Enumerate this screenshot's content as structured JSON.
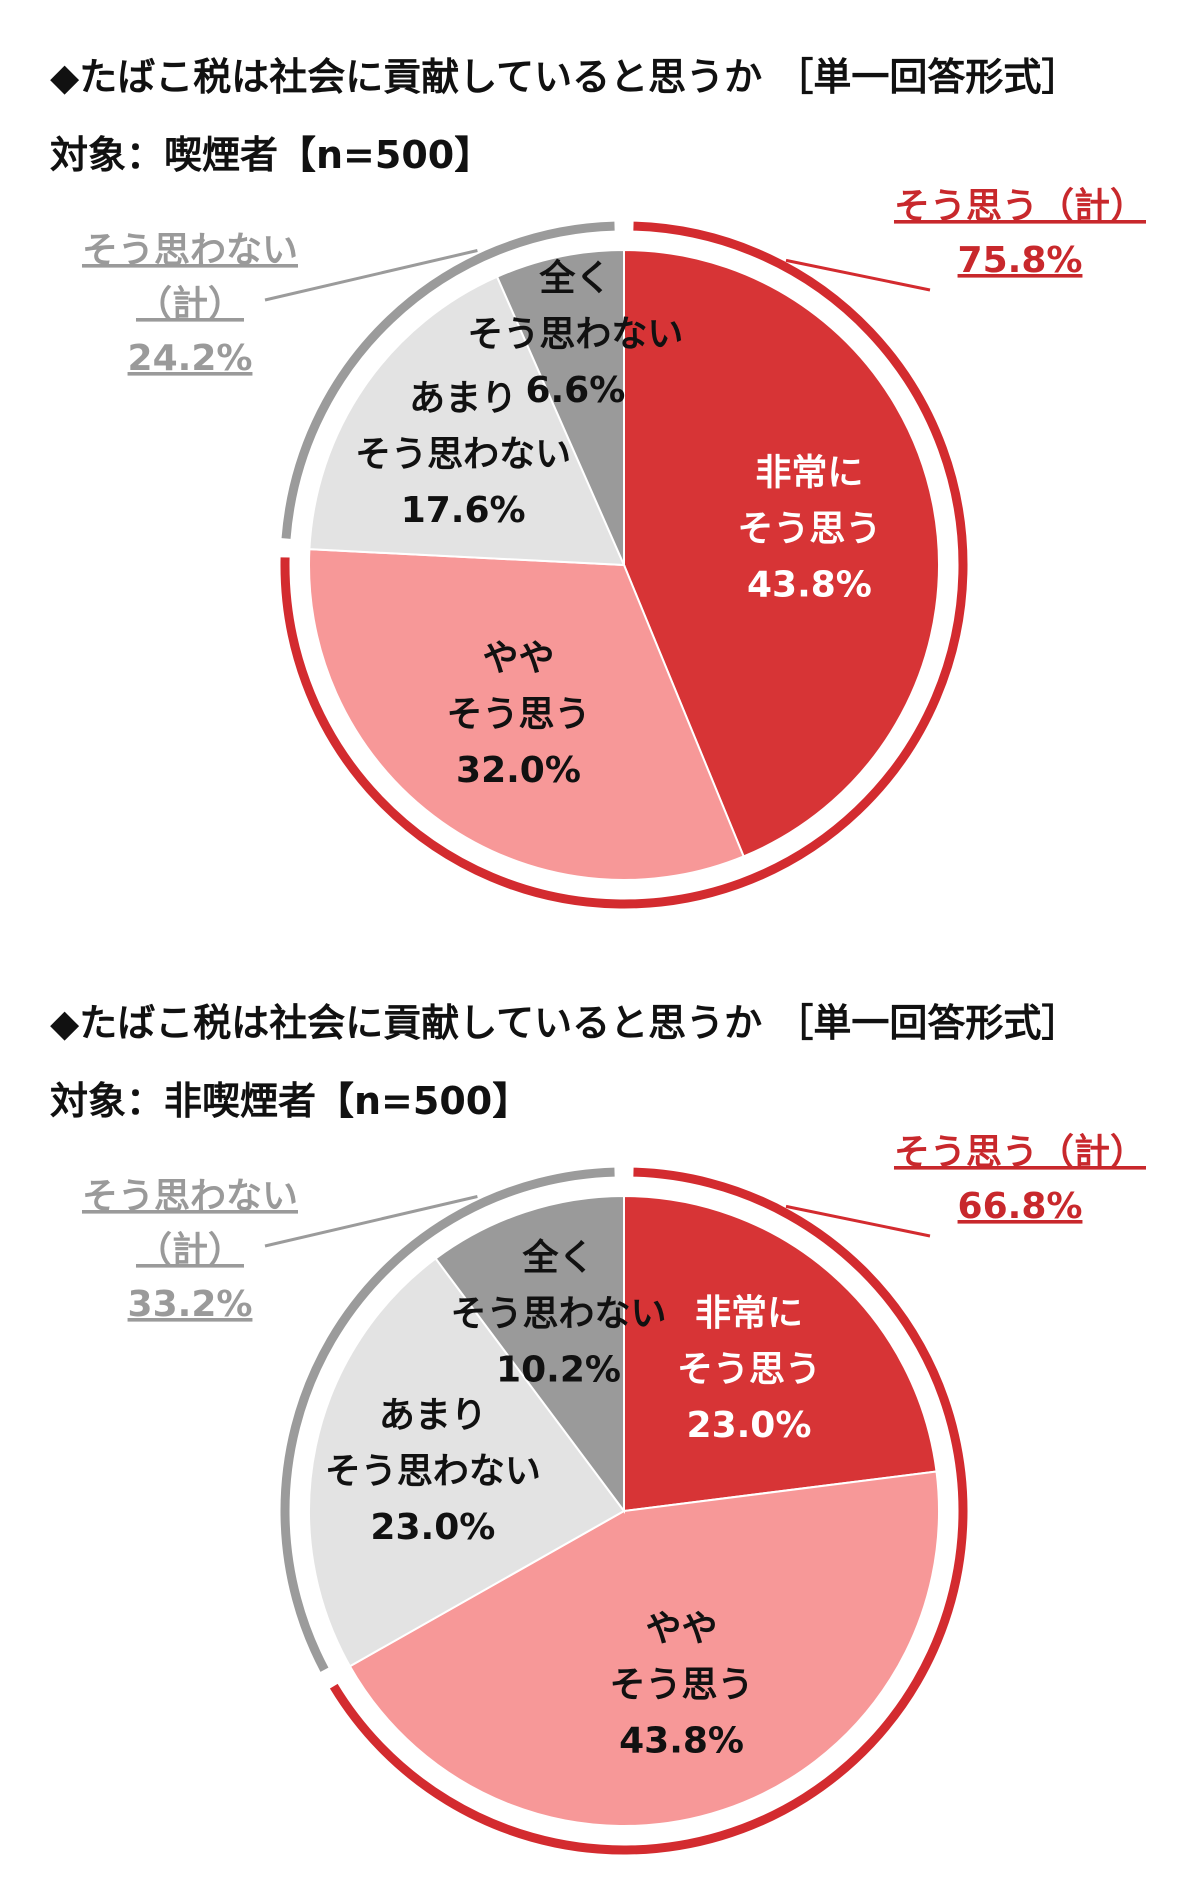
{
  "colors": {
    "very_agree": "#d73436",
    "somewhat_agree": "#f79898",
    "not_much": "#e3e3e3",
    "not_at_all": "#9a9a9a",
    "agree_ring": "#d32b2f",
    "disagree_ring": "#9b9b9b",
    "agree_total_text": "#c8282c",
    "disagree_total_text": "#9a9a9a",
    "text_dark": "#111111",
    "text_light": "#ffffff"
  },
  "chart_data": [
    {
      "type": "pie",
      "title": "◆たばこ税は社会に貢献していると思うか ［単一回答形式］",
      "subtitle": "対象：喫煙者【n=500】",
      "unit": "%",
      "slices": [
        {
          "label": [
            "非常に",
            "そう思う"
          ],
          "value": 43.8,
          "value_text": "43.8%"
        },
        {
          "label": [
            "やや",
            "そう思う"
          ],
          "value": 32.0,
          "value_text": "32.0%"
        },
        {
          "label": [
            "あまり",
            "そう思わない"
          ],
          "value": 17.6,
          "value_text": "17.6%"
        },
        {
          "label": [
            "全く",
            "そう思わない"
          ],
          "value": 6.6,
          "value_text": "6.6%"
        }
      ],
      "groups": [
        {
          "label": [
            "そう思う（計）"
          ],
          "value": 75.8,
          "value_text": "75.8%",
          "side": "right"
        },
        {
          "label": [
            "そう思わない",
            "（計）"
          ],
          "value": 24.2,
          "value_text": "24.2%",
          "side": "left"
        }
      ]
    },
    {
      "type": "pie",
      "title": "◆たばこ税は社会に貢献していると思うか ［単一回答形式］",
      "subtitle": "対象：非喫煙者【n=500】",
      "unit": "%",
      "slices": [
        {
          "label": [
            "非常に",
            "そう思う"
          ],
          "value": 23.0,
          "value_text": "23.0%"
        },
        {
          "label": [
            "やや",
            "そう思う"
          ],
          "value": 43.8,
          "value_text": "43.8%"
        },
        {
          "label": [
            "あまり",
            "そう思わない"
          ],
          "value": 23.0,
          "value_text": "23.0%"
        },
        {
          "label": [
            "全く",
            "そう思わない"
          ],
          "value": 10.2,
          "value_text": "10.2%"
        }
      ],
      "groups": [
        {
          "label": [
            "そう思う（計）"
          ],
          "value": 66.8,
          "value_text": "66.8%",
          "side": "right"
        },
        {
          "label": [
            "そう思わない",
            "（計）"
          ],
          "value": 33.2,
          "value_text": "33.2%",
          "side": "left"
        }
      ]
    }
  ]
}
